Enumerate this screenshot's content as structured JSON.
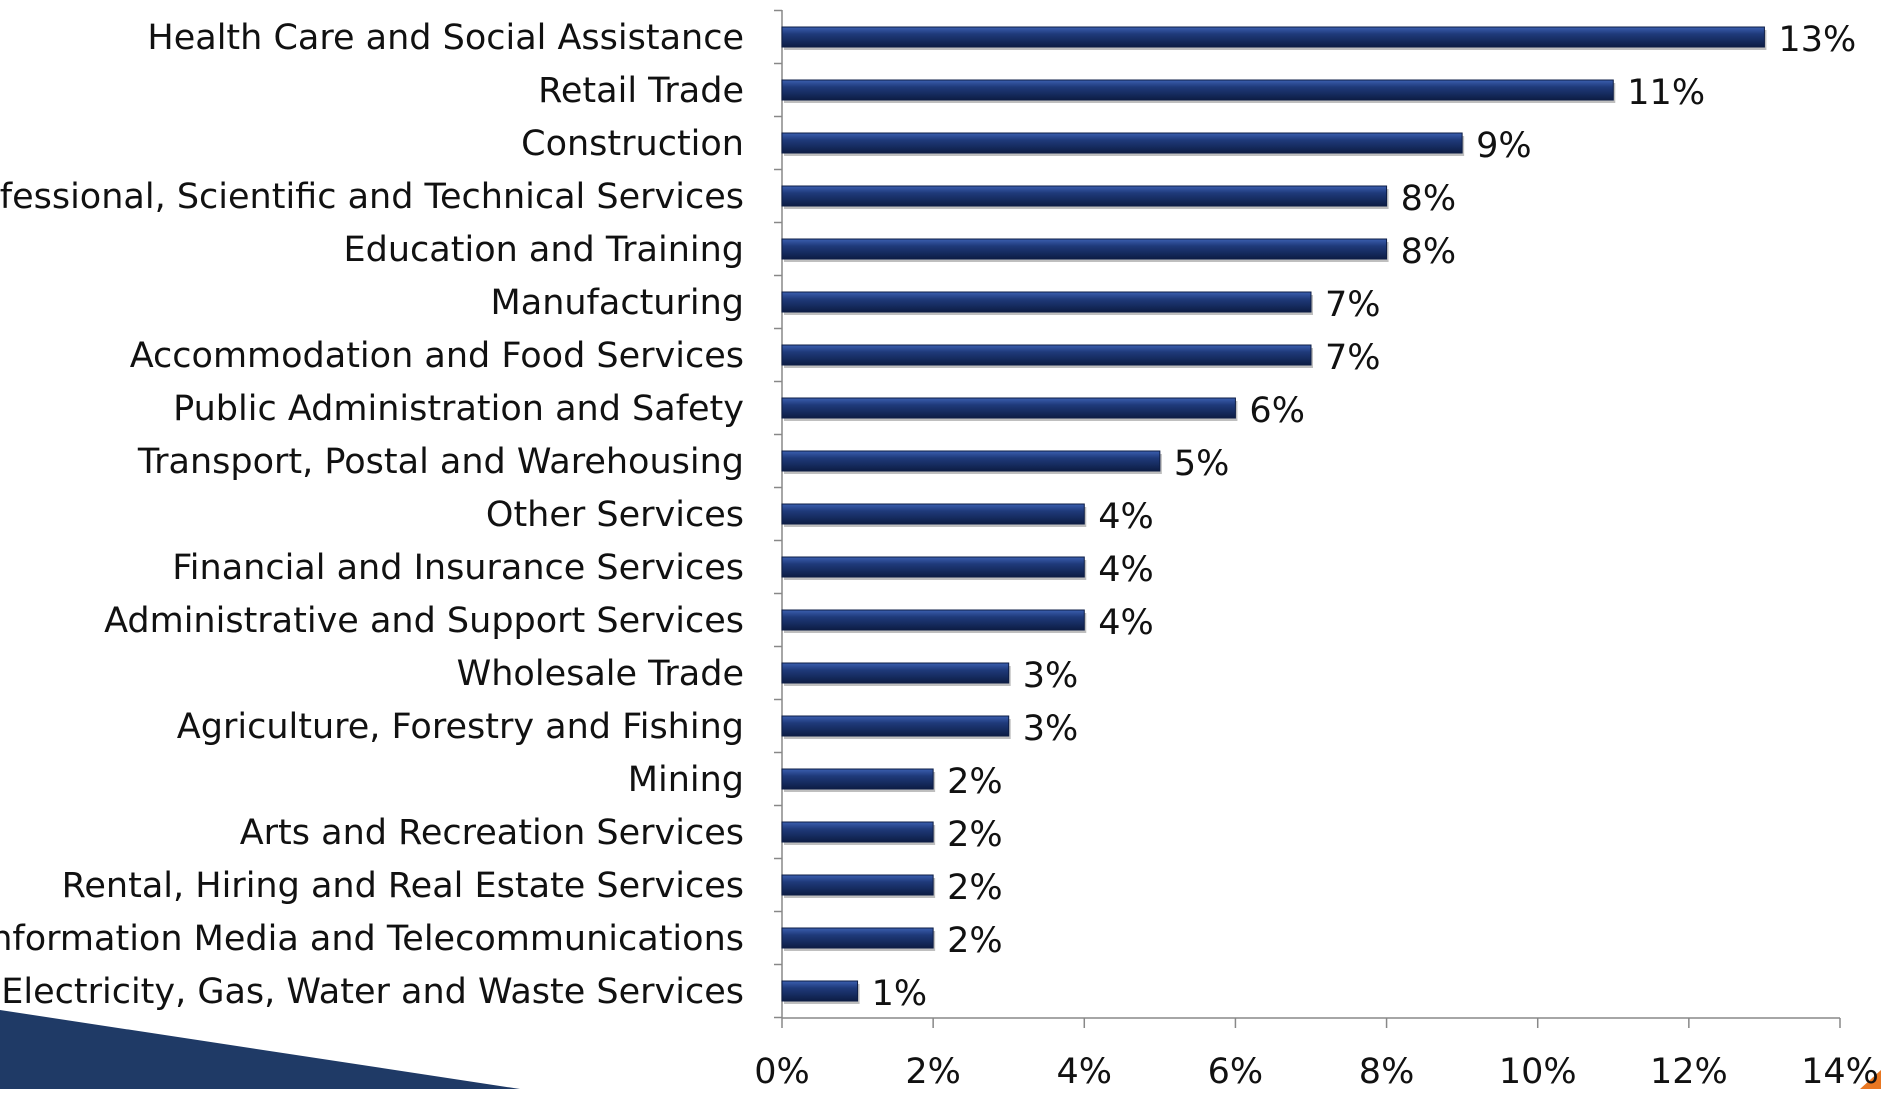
{
  "chart_data": {
    "type": "bar",
    "orientation": "horizontal",
    "title": "",
    "xlabel": "",
    "ylabel": "",
    "categories": [
      "Health Care and Social Assistance",
      "Retail Trade",
      "Construction",
      "Professional, Scientific and Technical Services",
      "Education and Training",
      "Manufacturing",
      "Accommodation and Food Services",
      "Public Administration and Safety",
      "Transport, Postal and Warehousing",
      "Other Services",
      "Financial and Insurance Services",
      "Administrative and Support Services",
      "Wholesale Trade",
      "Agriculture, Forestry and Fishing",
      "Mining",
      "Arts and Recreation Services",
      "Rental, Hiring and Real Estate Services",
      "Information Media and Telecommunications",
      "Electricity, Gas, Water and Waste Services"
    ],
    "values": [
      13,
      11,
      9,
      8,
      8,
      7,
      7,
      6,
      5,
      4,
      4,
      4,
      3,
      3,
      2,
      2,
      2,
      2,
      1
    ],
    "value_labels": [
      "13%",
      "11%",
      "9%",
      "8%",
      "8%",
      "7%",
      "7%",
      "6%",
      "5%",
      "4%",
      "4%",
      "4%",
      "3%",
      "3%",
      "2%",
      "2%",
      "2%",
      "2%",
      "1%"
    ],
    "value_unit": "%",
    "xlim": [
      0,
      14
    ],
    "x_ticks": [
      0,
      2,
      4,
      6,
      8,
      10,
      12,
      14
    ],
    "x_tick_labels": [
      "0%",
      "2%",
      "4%",
      "6%",
      "8%",
      "10%",
      "12%",
      "14%"
    ],
    "grid": false,
    "legend": "none",
    "colors": {
      "bar": "#1f3a7a",
      "bar_highlight": "#3b5fb0",
      "bar_shadow": "#0d1d45",
      "axis": "#888888",
      "decor_navy": "#1f3a66",
      "decor_orange": "#e87722"
    }
  }
}
